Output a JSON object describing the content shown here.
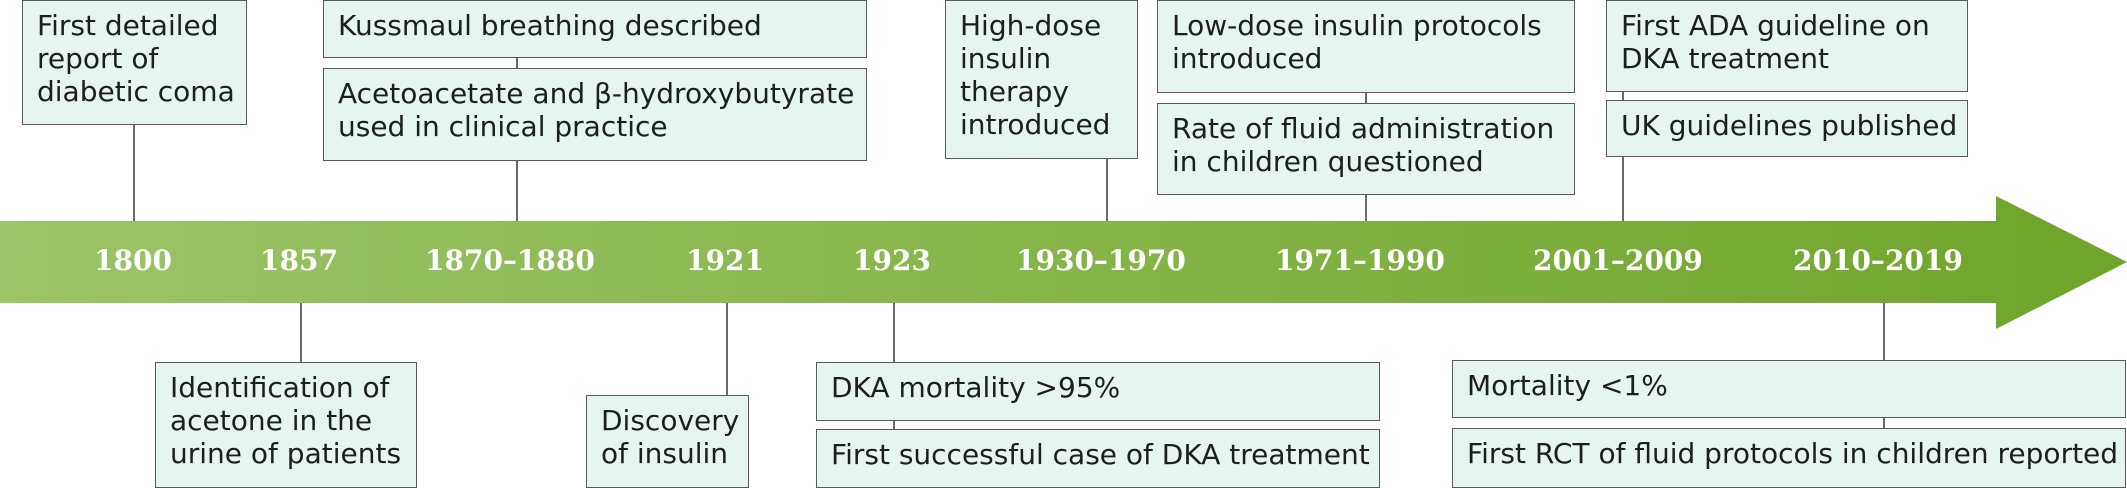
{
  "timeline": {
    "years": [
      {
        "label": "1800"
      },
      {
        "label": "1857"
      },
      {
        "label": "1870–1880"
      },
      {
        "label": "1921"
      },
      {
        "label": "1923"
      },
      {
        "label": "1930–1970"
      },
      {
        "label": "1971–1990"
      },
      {
        "label": "2001–2009"
      },
      {
        "label": "2010–2019"
      }
    ],
    "events": {
      "e1800": [
        "First detailed",
        "report of",
        "diabetic coma"
      ],
      "e1857": [
        "Identification of",
        "acetone in the",
        "urine of patients"
      ],
      "e1870a": [
        "Kussmaul breathing described"
      ],
      "e1870b": [
        "Acetoacetate and β-hydroxybutyrate",
        "used in clinical practice"
      ],
      "e1921": [
        "Discovery",
        "of insulin"
      ],
      "e1923a": [
        "DKA mortality >95%"
      ],
      "e1923b": [
        "First successful case of DKA treatment"
      ],
      "e1930": [
        "High-dose",
        "insulin",
        "therapy",
        "introduced"
      ],
      "e1971a": [
        "Low-dose insulin protocols",
        "introduced"
      ],
      "e1971b": [
        "Rate of fluid administration",
        "in children questioned"
      ],
      "e2001a": [
        "First ADA guideline on",
        "DKA treatment"
      ],
      "e2001b": [
        "UK guidelines published"
      ],
      "e2010a": [
        "Mortality <1%"
      ],
      "e2010b": [
        "First RCT of fluid protocols in children reported"
      ]
    }
  },
  "colors": {
    "arrow_start": "#9cc468",
    "arrow_end": "#6fa52a",
    "box_fill": "#e7f5f2",
    "box_border": "#5a5a5a"
  }
}
